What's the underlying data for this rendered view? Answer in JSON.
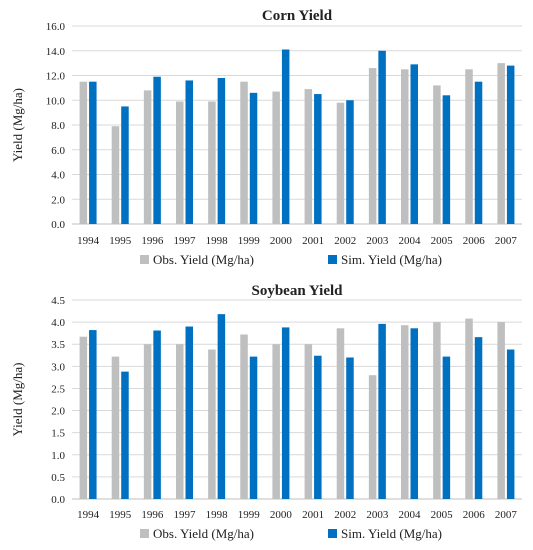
{
  "colors": {
    "observed": "#BFBFBF",
    "simulated": "#0070C0",
    "grid": "#D9D9D9",
    "axis": "#BFBFBF"
  },
  "chart_data": [
    {
      "type": "bar",
      "title": "Corn Yield",
      "ylabel": "Yield (Mg/ha)",
      "xlabel": "",
      "ylim": [
        0,
        16
      ],
      "yticks": [
        "0.0",
        "2.0",
        "4.0",
        "6.0",
        "8.0",
        "10.0",
        "12.0",
        "14.0",
        "16.0"
      ],
      "grid": true,
      "legend_position": "bottom",
      "categories": [
        "1994",
        "1995",
        "1996",
        "1997",
        "1998",
        "1999",
        "2000",
        "2001",
        "2002",
        "2003",
        "2004",
        "2005",
        "2006",
        "2007"
      ],
      "series": [
        {
          "name": "Obs. Yield (Mg/ha)",
          "values": [
            11.5,
            7.9,
            10.8,
            9.9,
            9.9,
            11.5,
            10.7,
            10.9,
            9.8,
            12.6,
            12.5,
            11.2,
            12.5,
            13.0
          ]
        },
        {
          "name": "Sim. Yield (Mg/ha)",
          "values": [
            11.5,
            9.5,
            11.9,
            11.6,
            11.8,
            10.6,
            14.1,
            10.5,
            10.0,
            14.0,
            12.9,
            10.4,
            11.5,
            12.8
          ]
        }
      ]
    },
    {
      "type": "bar",
      "title": "Soybean Yield",
      "ylabel": "Yield (Mg/ha)",
      "xlabel": "",
      "ylim": [
        0,
        4.5
      ],
      "yticks": [
        "0.0",
        "0.5",
        "1.0",
        "1.5",
        "2.0",
        "2.5",
        "3.0",
        "3.5",
        "4.0",
        "4.5"
      ],
      "grid": true,
      "legend_position": "bottom",
      "categories": [
        "1994",
        "1995",
        "1996",
        "1997",
        "1998",
        "1999",
        "2000",
        "2001",
        "2002",
        "2003",
        "2004",
        "2005",
        "2006",
        "2007"
      ],
      "series": [
        {
          "name": "Obs. Yield (Mg/ha)",
          "values": [
            3.67,
            3.22,
            3.5,
            3.5,
            3.38,
            3.72,
            3.5,
            3.5,
            3.86,
            2.8,
            3.93,
            4.0,
            4.08,
            4.0
          ]
        },
        {
          "name": "Sim. Yield (Mg/ha)",
          "values": [
            3.82,
            2.88,
            3.81,
            3.9,
            4.18,
            3.22,
            3.88,
            3.24,
            3.2,
            3.96,
            3.86,
            3.22,
            3.66,
            3.38
          ]
        }
      ]
    }
  ]
}
